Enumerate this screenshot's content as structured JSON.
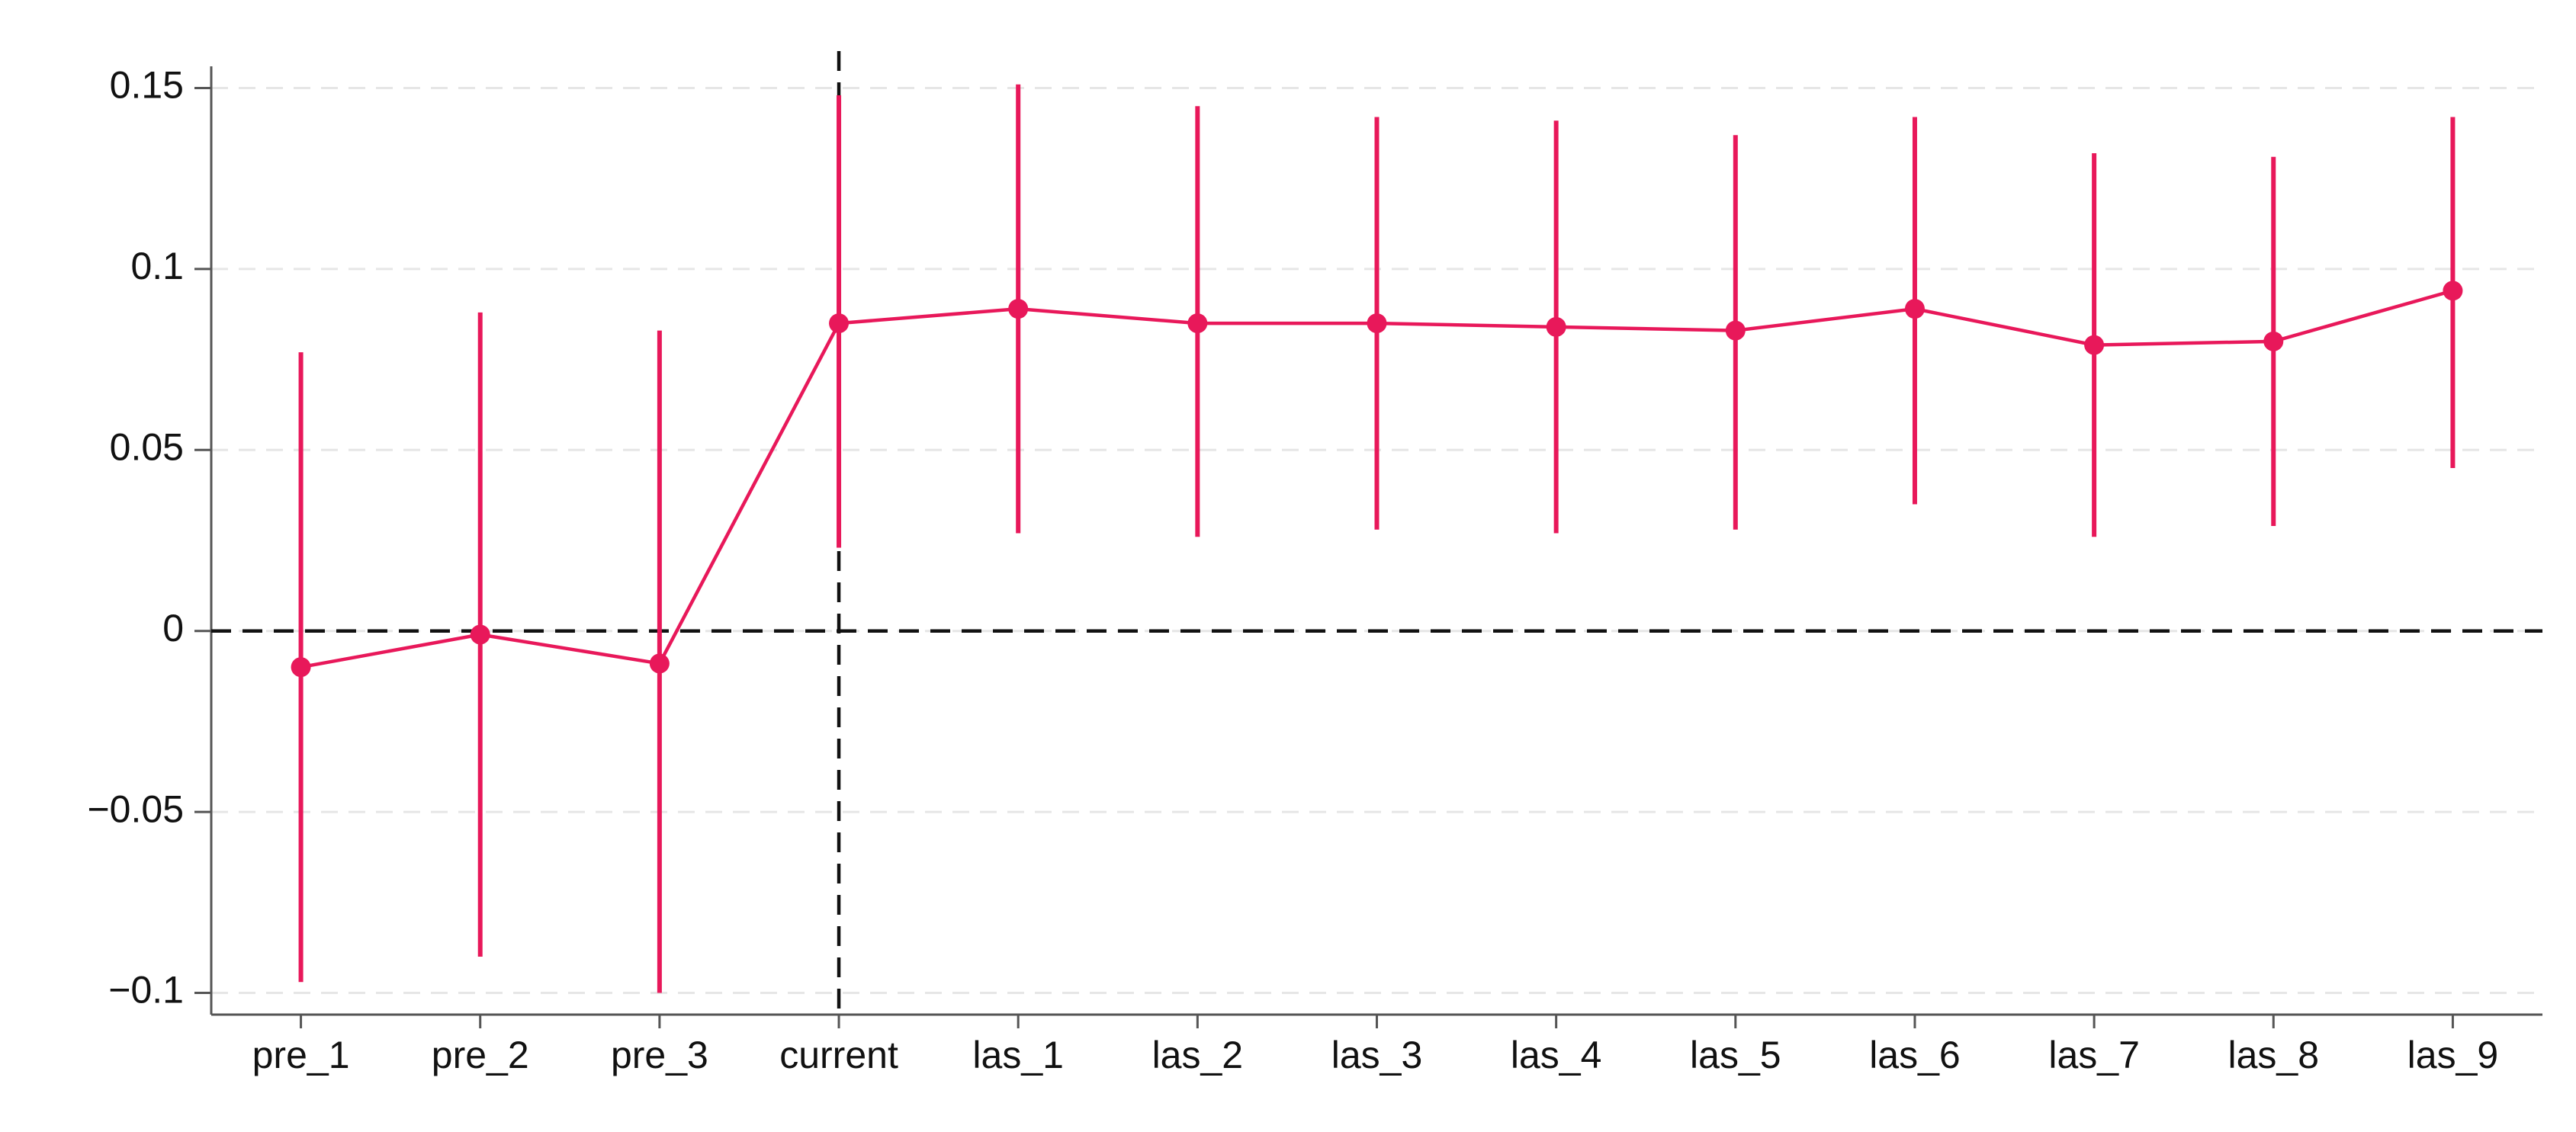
{
  "chart_data": {
    "type": "errorbar-line",
    "categories": [
      "pre_1",
      "pre_2",
      "pre_3",
      "current",
      "las_1",
      "las_2",
      "las_3",
      "las_4",
      "las_5",
      "las_6",
      "las_7",
      "las_8",
      "las_9"
    ],
    "series": [
      {
        "color": "#e8185a",
        "values": [
          -0.01,
          -0.001,
          -0.009,
          0.085,
          0.089,
          0.085,
          0.085,
          0.084,
          0.083,
          0.089,
          0.079,
          0.08,
          0.094
        ],
        "lower": [
          -0.097,
          -0.09,
          -0.1,
          0.023,
          0.027,
          0.026,
          0.028,
          0.027,
          0.028,
          0.035,
          0.026,
          0.029,
          0.045
        ],
        "upper": [
          0.077,
          0.088,
          0.083,
          0.148,
          0.151,
          0.145,
          0.142,
          0.141,
          0.137,
          0.142,
          0.132,
          0.131,
          0.142
        ]
      }
    ],
    "ylim": [
      -0.106,
      0.156
    ],
    "yticks": [
      {
        "value": -0.1,
        "label": "−0.1"
      },
      {
        "value": -0.05,
        "label": "−0.05"
      },
      0,
      0.05,
      0.1,
      0.15
    ],
    "grid": true,
    "reference_lines": {
      "y": 0,
      "x": "current"
    }
  }
}
